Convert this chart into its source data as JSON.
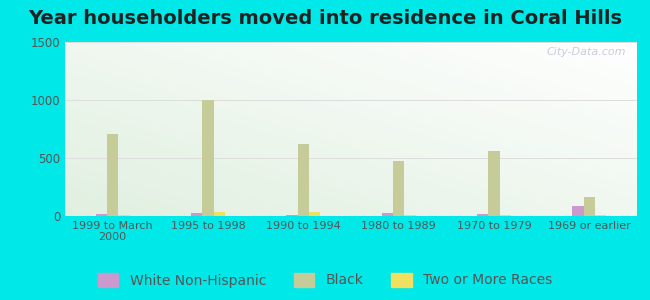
{
  "title": "Year householders moved into residence in Coral Hills",
  "categories": [
    "1999 to March\n2000",
    "1995 to 1998",
    "1990 to 1994",
    "1980 to 1989",
    "1970 to 1979",
    "1969 or earlier"
  ],
  "series": {
    "White Non-Hispanic": [
      15,
      28,
      8,
      22,
      18,
      90
    ],
    "Black": [
      710,
      1000,
      620,
      475,
      560,
      165
    ],
    "Two or More Races": [
      8,
      32,
      32,
      8,
      8,
      8
    ]
  },
  "colors": {
    "White Non-Hispanic": "#cc99cc",
    "Black": "#c5cc99",
    "Two or More Races": "#f0e060"
  },
  "ylim": [
    0,
    1500
  ],
  "yticks": [
    0,
    500,
    1000,
    1500
  ],
  "outer_background": "#00e8e8",
  "watermark": "City-Data.com",
  "title_fontsize": 14,
  "title_color": "#222222",
  "legend_fontsize": 10,
  "tick_color": "#555555"
}
